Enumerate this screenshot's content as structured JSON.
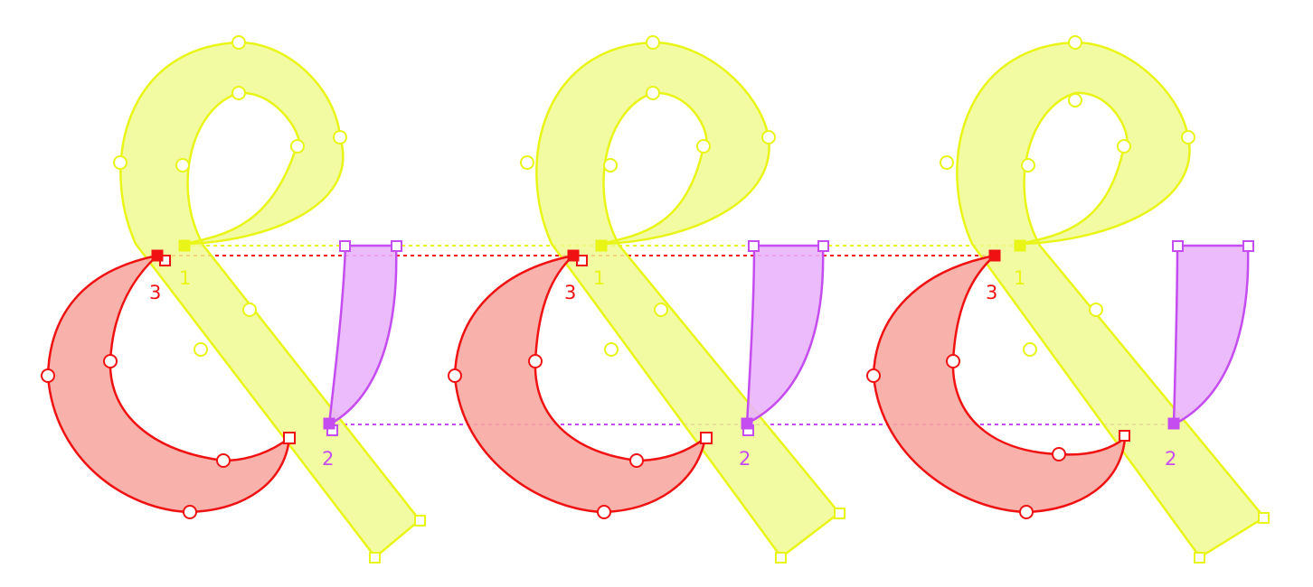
{
  "colors": {
    "contour1": "#e9f516",
    "contour1_fill": "#f0fa90",
    "contour2": "#c44cf0",
    "contour2_fill": "#e9b4fb",
    "contour3": "#f01212",
    "contour3_fill": "#f8a8a2",
    "background": "#ffffff"
  },
  "glyphs": [
    {
      "contours": [
        {
          "label": "1",
          "color_key": "contour1"
        },
        {
          "label": "2",
          "color_key": "contour2"
        },
        {
          "label": "3",
          "color_key": "contour3"
        }
      ]
    },
    {
      "contours": [
        {
          "label": "1",
          "color_key": "contour1"
        },
        {
          "label": "2",
          "color_key": "contour2"
        },
        {
          "label": "3",
          "color_key": "contour3"
        }
      ]
    },
    {
      "contours": [
        {
          "label": "1",
          "color_key": "contour1"
        },
        {
          "label": "2",
          "color_key": "contour2"
        },
        {
          "label": "3",
          "color_key": "contour3"
        }
      ]
    }
  ]
}
